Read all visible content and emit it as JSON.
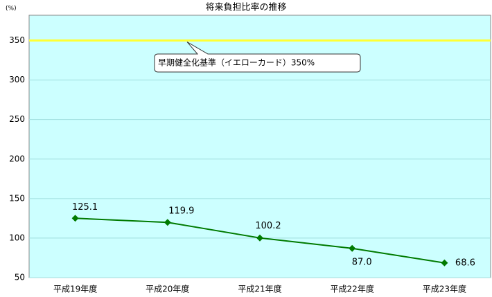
{
  "chart_data": {
    "type": "line",
    "title": "将来負担比率の推移",
    "y_label": "(%)",
    "categories": [
      "平成19年度",
      "平成20年度",
      "平成21年度",
      "平成22年度",
      "平成23年度"
    ],
    "series": [
      {
        "name": "将来負担比率",
        "color": "#007a00",
        "values": [
          125.1,
          119.9,
          100.2,
          87.0,
          68.6
        ],
        "value_labels": [
          "125.1",
          "119.9",
          "100.2",
          "87.0",
          "68.6"
        ]
      }
    ],
    "reference_line": {
      "value": 350,
      "label": "早期健全化基準（イエローカード）350%",
      "color": "#ffff33"
    },
    "ylim": [
      50,
      382
    ],
    "yticks": [
      50,
      100,
      150,
      200,
      250,
      300,
      350
    ],
    "grid": true,
    "background": "#ccffff"
  }
}
